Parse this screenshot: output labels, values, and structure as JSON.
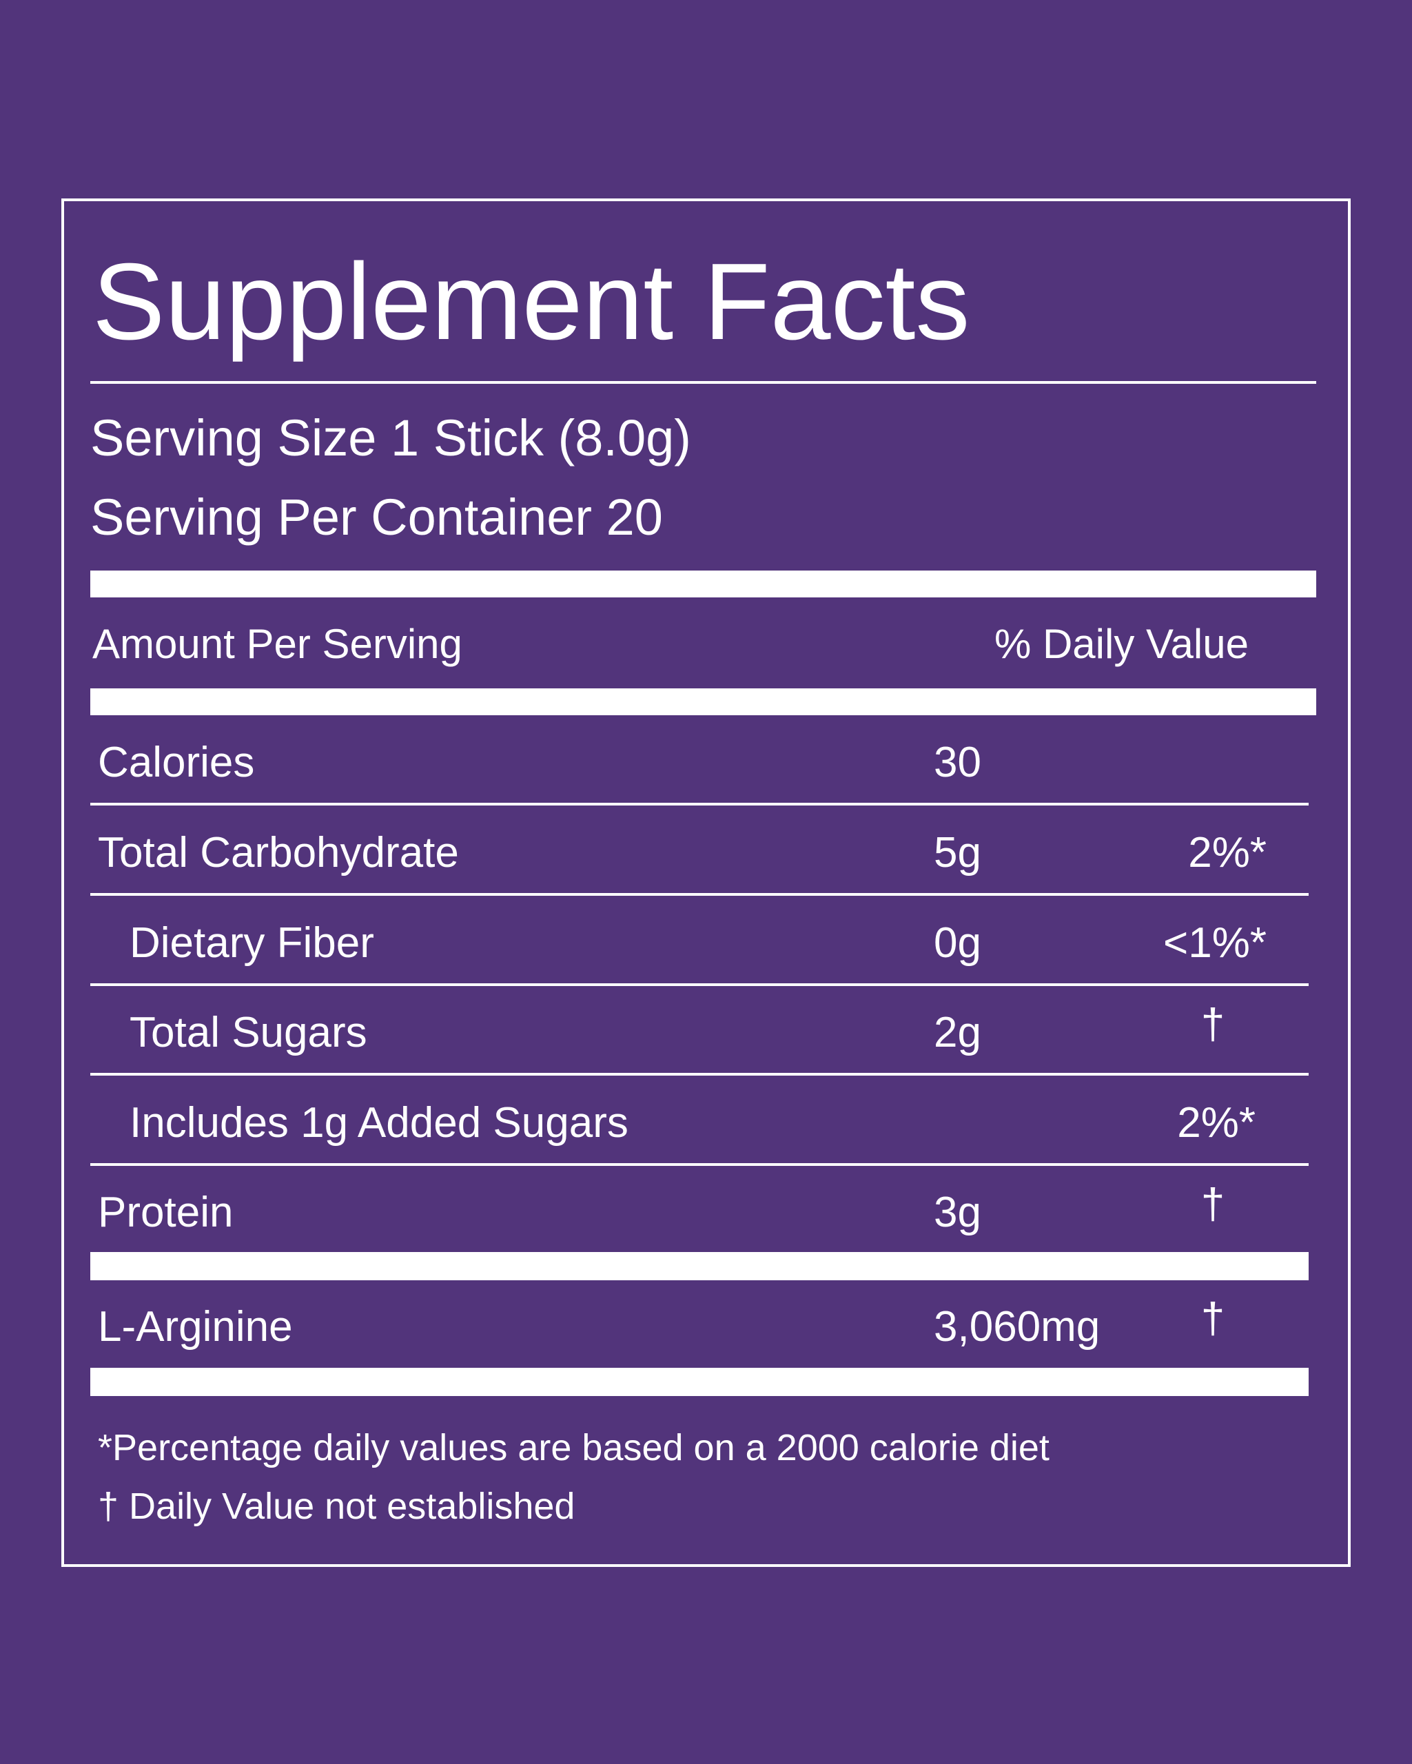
{
  "header": {
    "title": "Supplement Facts",
    "serving_size": "Serving Size 1 Stick (8.0g)",
    "servings_per_container": "Serving Per Container 20"
  },
  "columns": {
    "amount": "Amount Per Serving",
    "daily_value": "% Daily Value"
  },
  "rows": [
    {
      "label": "Calories",
      "amount": "30"
    },
    {
      "label": "Total Carbohydrate",
      "amount": "5g",
      "daily_value": "2%*"
    },
    {
      "label": "Dietary Fiber",
      "amount": "0g",
      "daily_value": "<1%*"
    },
    {
      "label": "Total Sugars",
      "amount": "2g",
      "daily_value": "†"
    },
    {
      "label": "Includes 1g Added Sugars",
      "daily_value": "2%*"
    },
    {
      "label": "Protein",
      "amount": "3g",
      "daily_value": "†"
    },
    {
      "label": "L-Arginine",
      "amount": "3,060mg",
      "daily_value": "†"
    }
  ],
  "footnotes": [
    "*Percentage daily values are based on a 2000 calorie diet",
    "† Daily Value not established"
  ]
}
